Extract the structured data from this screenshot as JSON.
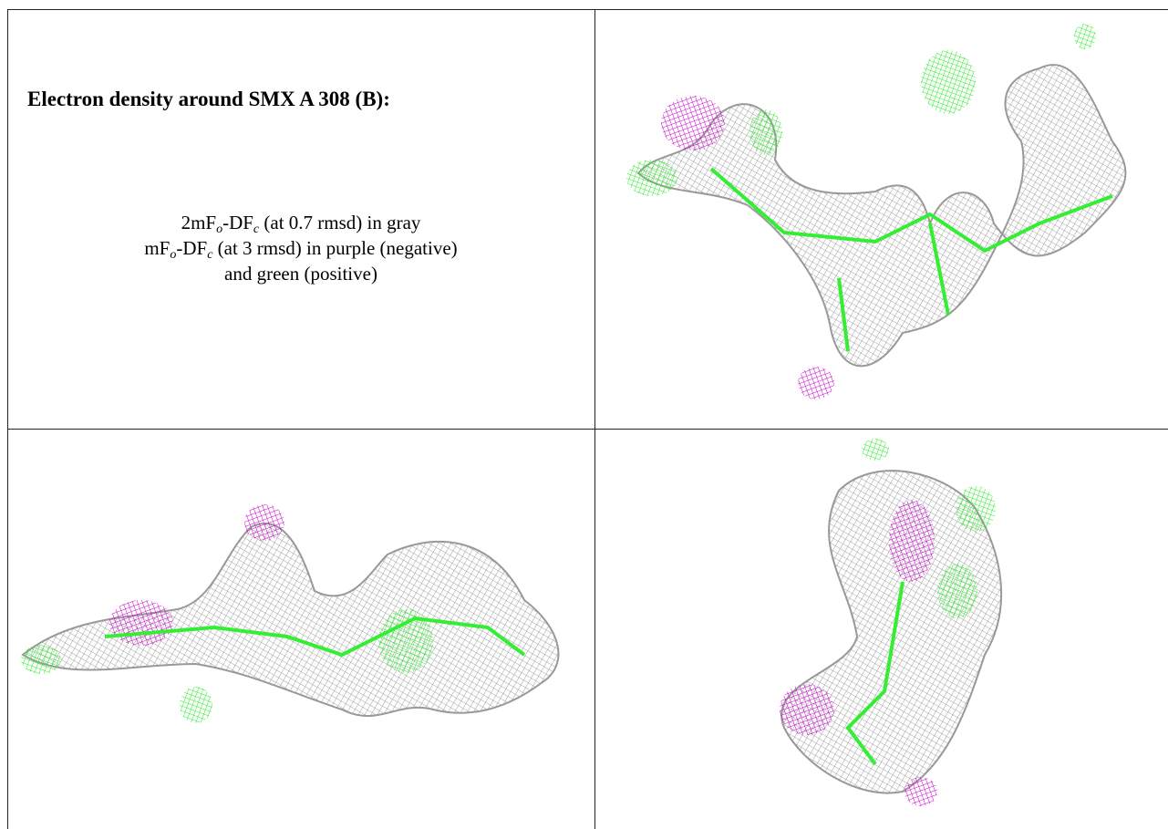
{
  "title": "Electron density around SMX A 308 (B):",
  "legend": [
    [
      "2mF",
      "o",
      "-DF",
      "c",
      " (at 0.7 rmsd) in gray"
    ],
    [
      "mF",
      "o",
      "-DF",
      "c",
      " (at 3 rmsd) in purple (negative)"
    ],
    [
      "and green (positive)"
    ]
  ]
}
